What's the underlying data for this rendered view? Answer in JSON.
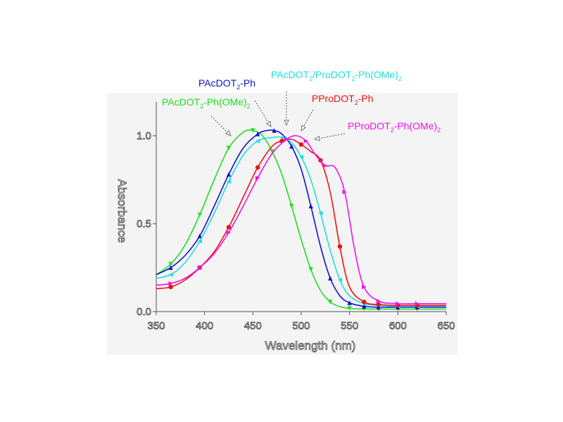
{
  "chart_data": {
    "type": "line",
    "title": "",
    "xlabel": "Wavelength (nm)",
    "ylabel": "Absorbance",
    "xlim": [
      350,
      650
    ],
    "ylim": [
      0,
      1.2
    ],
    "x_ticks": [
      350,
      400,
      450,
      500,
      550,
      600,
      650
    ],
    "y_ticks": [
      0.0,
      0.5,
      1.0
    ],
    "x_tick_labels": [
      "350",
      "400",
      "450",
      "500",
      "550",
      "600",
      "650"
    ],
    "y_tick_labels": [
      "0.0",
      "0.5",
      "1.0"
    ],
    "grid": false,
    "background": "#f4f4f4",
    "series": [
      {
        "name": "PAcDOT2-Ph(OMe)2",
        "label_main": "PAcDOT",
        "label_parts": [
          [
            "PAcDOT",
            ""
          ],
          [
            "2",
            "sub"
          ],
          [
            "-Ph(OMe)",
            ""
          ],
          [
            "2",
            "sub"
          ]
        ],
        "color": "#22dd22",
        "marker": "triangle-down",
        "x": [
          350,
          365,
          380,
          395,
          410,
          425,
          440,
          450,
          460,
          470,
          480,
          490,
          500,
          510,
          520,
          530,
          540,
          550,
          565,
          580,
          600,
          620,
          650
        ],
        "y": [
          0.21,
          0.27,
          0.38,
          0.55,
          0.75,
          0.93,
          1.02,
          1.03,
          1.0,
          0.91,
          0.78,
          0.6,
          0.41,
          0.24,
          0.12,
          0.055,
          0.028,
          0.018,
          0.015,
          0.014,
          0.014,
          0.014,
          0.014
        ]
      },
      {
        "name": "PAcDOT2-Ph",
        "label_parts": [
          [
            "PAcDOT",
            ""
          ],
          [
            "2",
            "sub"
          ],
          [
            "-Ph",
            ""
          ]
        ],
        "color": "#1111cc",
        "marker": "triangle-up",
        "x": [
          350,
          365,
          380,
          395,
          410,
          425,
          440,
          455,
          465,
          472,
          480,
          490,
          500,
          510,
          520,
          530,
          540,
          550,
          565,
          580,
          600,
          620,
          650
        ],
        "y": [
          0.21,
          0.25,
          0.32,
          0.43,
          0.6,
          0.78,
          0.93,
          1.01,
          1.03,
          1.03,
          1.01,
          0.94,
          0.81,
          0.6,
          0.37,
          0.19,
          0.09,
          0.05,
          0.03,
          0.025,
          0.025,
          0.025,
          0.025
        ]
      },
      {
        "name": "PAcDOT2/ProDOT2-Ph(OMe)2",
        "label_parts": [
          [
            "PAcDOT",
            ""
          ],
          [
            "2",
            "sub"
          ],
          [
            "/ProDOT",
            ""
          ],
          [
            "2",
            "sub"
          ],
          [
            "-Ph(OMe)",
            ""
          ],
          [
            "2",
            "sub"
          ]
        ],
        "color": "#22dddd",
        "marker": "triangle-left",
        "x": [
          350,
          365,
          380,
          395,
          410,
          425,
          440,
          455,
          470,
          480,
          490,
          500,
          510,
          520,
          530,
          540,
          550,
          565,
          580,
          600,
          620,
          650
        ],
        "y": [
          0.19,
          0.21,
          0.28,
          0.4,
          0.56,
          0.74,
          0.89,
          0.97,
          0.99,
          0.99,
          0.96,
          0.88,
          0.75,
          0.56,
          0.35,
          0.18,
          0.09,
          0.045,
          0.035,
          0.03,
          0.03,
          0.03
        ]
      },
      {
        "name": "PProDOT2-Ph",
        "label_parts": [
          [
            "PProDOT",
            ""
          ],
          [
            "2",
            "sub"
          ],
          [
            "-Ph",
            ""
          ]
        ],
        "color": "#ee1111",
        "marker": "circle",
        "x": [
          350,
          365,
          380,
          395,
          410,
          425,
          440,
          455,
          470,
          480,
          490,
          500,
          510,
          520,
          530,
          540,
          550,
          565,
          580,
          600,
          620,
          650
        ],
        "y": [
          0.13,
          0.14,
          0.18,
          0.25,
          0.34,
          0.48,
          0.65,
          0.82,
          0.94,
          0.97,
          0.98,
          0.95,
          0.91,
          0.86,
          0.68,
          0.37,
          0.14,
          0.055,
          0.04,
          0.035,
          0.035,
          0.035
        ]
      },
      {
        "name": "PProDOT2-Ph(OMe)2",
        "label_parts": [
          [
            "PProDOT",
            ""
          ],
          [
            "2",
            "sub"
          ],
          [
            "-Ph(OMe)",
            ""
          ],
          [
            "2",
            "sub"
          ]
        ],
        "color": "#ee11ee",
        "marker": "triangle-right",
        "x": [
          350,
          365,
          380,
          395,
          410,
          425,
          440,
          455,
          470,
          485,
          495,
          505,
          515,
          525,
          535,
          545,
          555,
          565,
          580,
          600,
          620,
          650
        ],
        "y": [
          0.15,
          0.16,
          0.19,
          0.25,
          0.33,
          0.45,
          0.6,
          0.76,
          0.9,
          0.98,
          1.0,
          0.97,
          0.89,
          0.83,
          0.82,
          0.68,
          0.36,
          0.14,
          0.06,
          0.045,
          0.045,
          0.045
        ]
      }
    ]
  }
}
